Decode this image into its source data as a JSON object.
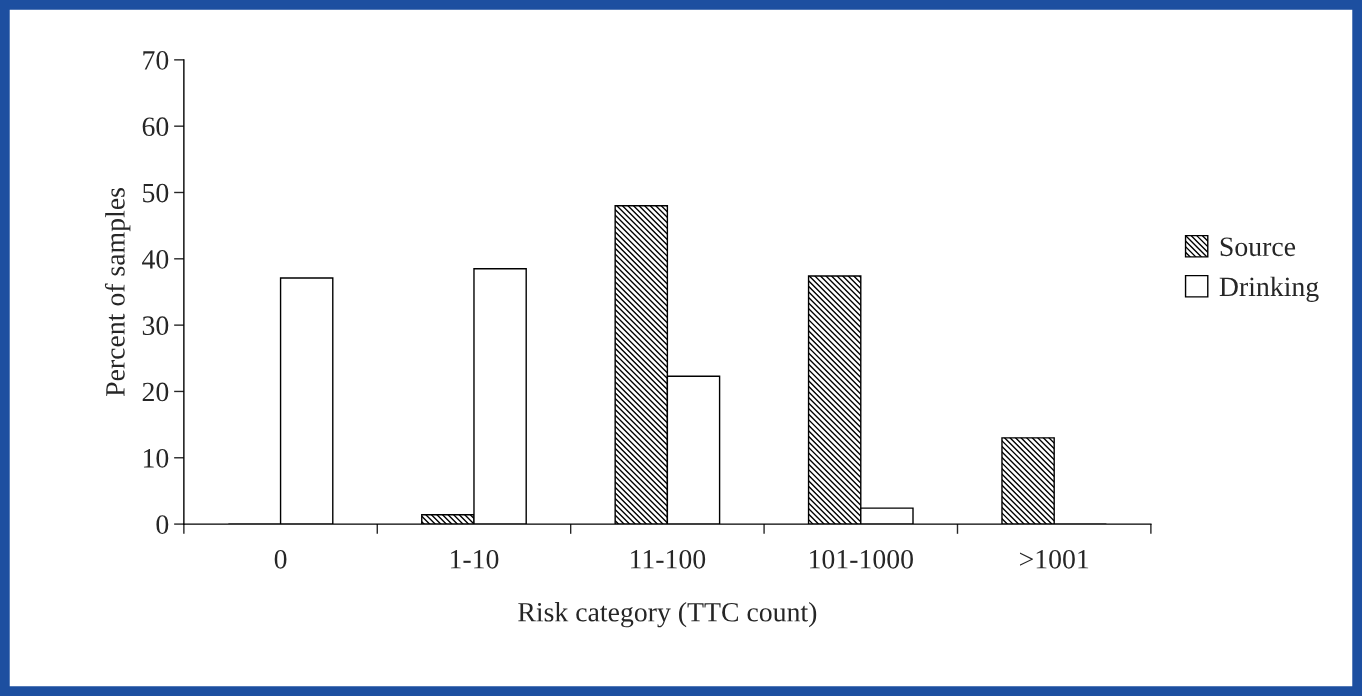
{
  "chart_data": {
    "type": "bar",
    "xlabel": "Risk category (TTC count)",
    "ylabel": "Percent of samples",
    "categories": [
      "0",
      "1-10",
      "11-100",
      "101-1000",
      ">1001"
    ],
    "series": [
      {
        "name": "Source",
        "color": "#000000",
        "values": [
          0,
          1.4,
          48,
          37.4,
          13
        ]
      },
      {
        "name": "Drinking",
        "color": "#ffffff",
        "values": [
          37.1,
          38.5,
          22.3,
          2.4,
          0
        ]
      }
    ],
    "ylim": [
      0,
      70
    ],
    "yticks": [
      0,
      10,
      20,
      30,
      40,
      50,
      60,
      70
    ],
    "grid": false,
    "legend": "right"
  }
}
